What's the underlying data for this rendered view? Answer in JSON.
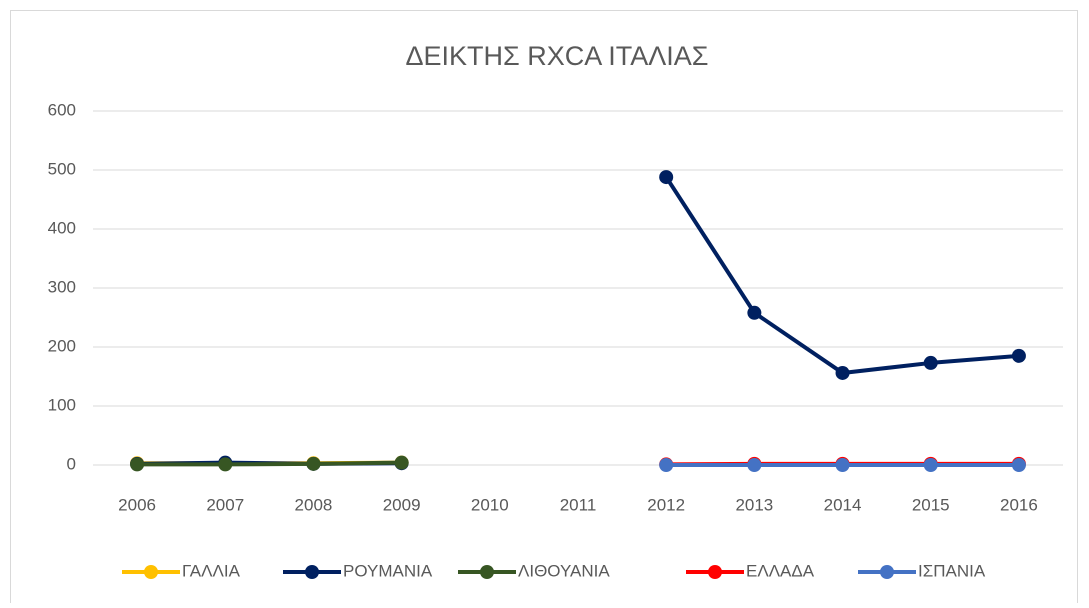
{
  "chart_data": {
    "type": "line",
    "title": "ΔΕΙΚΤΗΣ RXCA ΙΤΑΛΙΑΣ",
    "categories": [
      "2006",
      "2007",
      "2008",
      "2009",
      "2010",
      "2011",
      "2012",
      "2013",
      "2014",
      "2015",
      "2016"
    ],
    "series": [
      {
        "name": "ΓΑΛΛΙΑ",
        "color": "#ffc000",
        "values": [
          3,
          3,
          3,
          4,
          null,
          null,
          null,
          null,
          null,
          null,
          null
        ]
      },
      {
        "name": "ΡΟΥΜΑΝΙΑ",
        "color": "#002060",
        "values": [
          2,
          4,
          2,
          3,
          null,
          null,
          488,
          258,
          156,
          173,
          185
        ]
      },
      {
        "name": "ΛΙΘΟΥΑΝΙΑ",
        "color": "#375623",
        "values": [
          1,
          1,
          2,
          4,
          null,
          null,
          null,
          null,
          null,
          null,
          null
        ]
      },
      {
        "name": "ΕΛΛΑΔΑ",
        "color": "#ff0000",
        "values": [
          null,
          null,
          null,
          null,
          null,
          null,
          1,
          2,
          2,
          2,
          2
        ]
      },
      {
        "name": "ΙΣΠΑΝΙΑ",
        "color": "#4472c4",
        "values": [
          null,
          null,
          null,
          null,
          null,
          null,
          0,
          0,
          0,
          0,
          0
        ]
      }
    ],
    "ylim": [
      0,
      600
    ],
    "yticks": [
      0,
      100,
      200,
      300,
      400,
      500,
      600
    ],
    "grid": true,
    "legend": "bottom"
  }
}
